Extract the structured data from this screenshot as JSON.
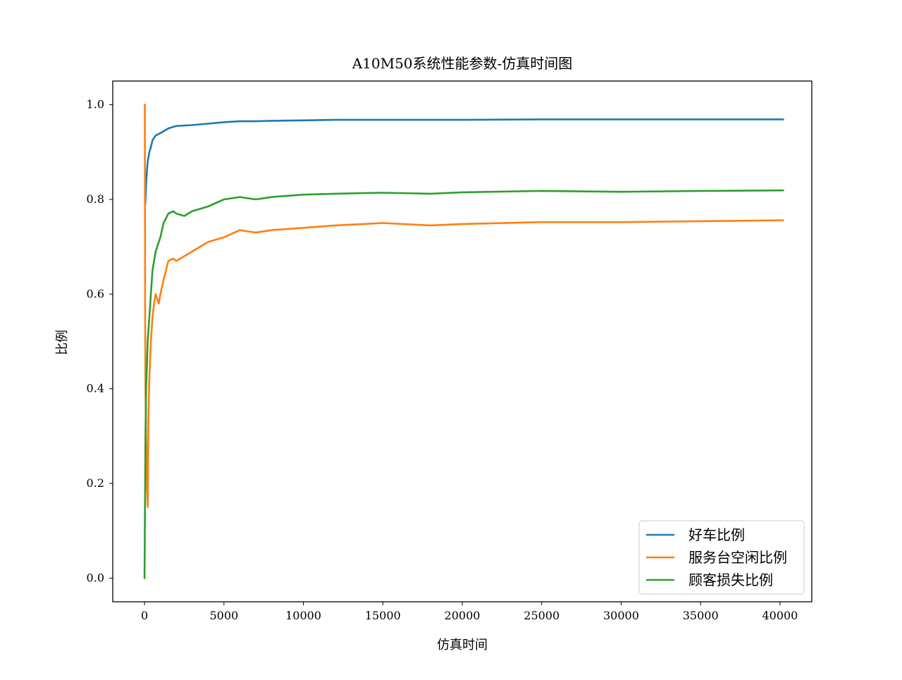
{
  "chart_data": {
    "type": "line",
    "title": "A10M50系统性能参数-仿真时间图",
    "xlabel": "仿真时间",
    "ylabel": "比例",
    "xlim": [
      -2000,
      42000
    ],
    "ylim": [
      -0.05,
      1.05
    ],
    "xticks": [
      0,
      5000,
      10000,
      15000,
      20000,
      25000,
      30000,
      35000,
      40000
    ],
    "xtick_labels": [
      "0",
      "5000",
      "10000",
      "15000",
      "20000",
      "25000",
      "30000",
      "35000",
      "40000"
    ],
    "yticks": [
      0.0,
      0.2,
      0.4,
      0.6,
      0.8,
      1.0
    ],
    "ytick_labels": [
      "0.0",
      "0.2",
      "0.4",
      "0.6",
      "0.8",
      "1.0"
    ],
    "grid": false,
    "legend_position": "bottom-right",
    "series": [
      {
        "name": "好车比例",
        "color": "#1f77b4",
        "x": [
          50,
          100,
          150,
          200,
          300,
          400,
          500,
          700,
          1000,
          1500,
          2000,
          3000,
          4000,
          5000,
          6000,
          7000,
          8000,
          10000,
          12000,
          15000,
          20000,
          25000,
          30000,
          35000,
          40200
        ],
        "y": [
          0.79,
          0.83,
          0.86,
          0.88,
          0.9,
          0.91,
          0.925,
          0.935,
          0.94,
          0.95,
          0.955,
          0.957,
          0.96,
          0.963,
          0.965,
          0.965,
          0.966,
          0.967,
          0.968,
          0.968,
          0.968,
          0.969,
          0.969,
          0.969,
          0.969
        ]
      },
      {
        "name": "服务台空闲比例",
        "color": "#ff7f0e",
        "x": [
          0,
          20,
          40,
          60,
          80,
          100,
          150,
          200,
          250,
          300,
          400,
          500,
          600,
          700,
          800,
          900,
          1000,
          1200,
          1500,
          1800,
          2000,
          2500,
          3000,
          3500,
          4000,
          5000,
          6000,
          7000,
          8000,
          10000,
          12000,
          15000,
          18000,
          20000,
          25000,
          30000,
          35000,
          40200
        ],
        "y": [
          1.0,
          1.0,
          0.55,
          0.4,
          0.35,
          0.3,
          0.2,
          0.15,
          0.35,
          0.42,
          0.5,
          0.55,
          0.58,
          0.6,
          0.59,
          0.58,
          0.6,
          0.63,
          0.67,
          0.675,
          0.67,
          0.68,
          0.69,
          0.7,
          0.71,
          0.72,
          0.735,
          0.73,
          0.735,
          0.74,
          0.745,
          0.75,
          0.745,
          0.748,
          0.752,
          0.752,
          0.754,
          0.756
        ]
      },
      {
        "name": "顾客损失比例",
        "color": "#2ca02c",
        "x": [
          0,
          20,
          40,
          60,
          80,
          100,
          150,
          200,
          300,
          400,
          500,
          700,
          800,
          1000,
          1200,
          1500,
          1800,
          2000,
          2500,
          3000,
          3500,
          4000,
          5000,
          6000,
          7000,
          8000,
          10000,
          12000,
          15000,
          18000,
          20000,
          25000,
          30000,
          35000,
          40200
        ],
        "y": [
          0.0,
          0.1,
          0.2,
          0.3,
          0.35,
          0.4,
          0.45,
          0.5,
          0.55,
          0.6,
          0.65,
          0.69,
          0.7,
          0.72,
          0.75,
          0.77,
          0.775,
          0.77,
          0.765,
          0.775,
          0.78,
          0.785,
          0.8,
          0.805,
          0.8,
          0.805,
          0.81,
          0.812,
          0.814,
          0.812,
          0.815,
          0.818,
          0.816,
          0.818,
          0.819
        ]
      }
    ]
  }
}
